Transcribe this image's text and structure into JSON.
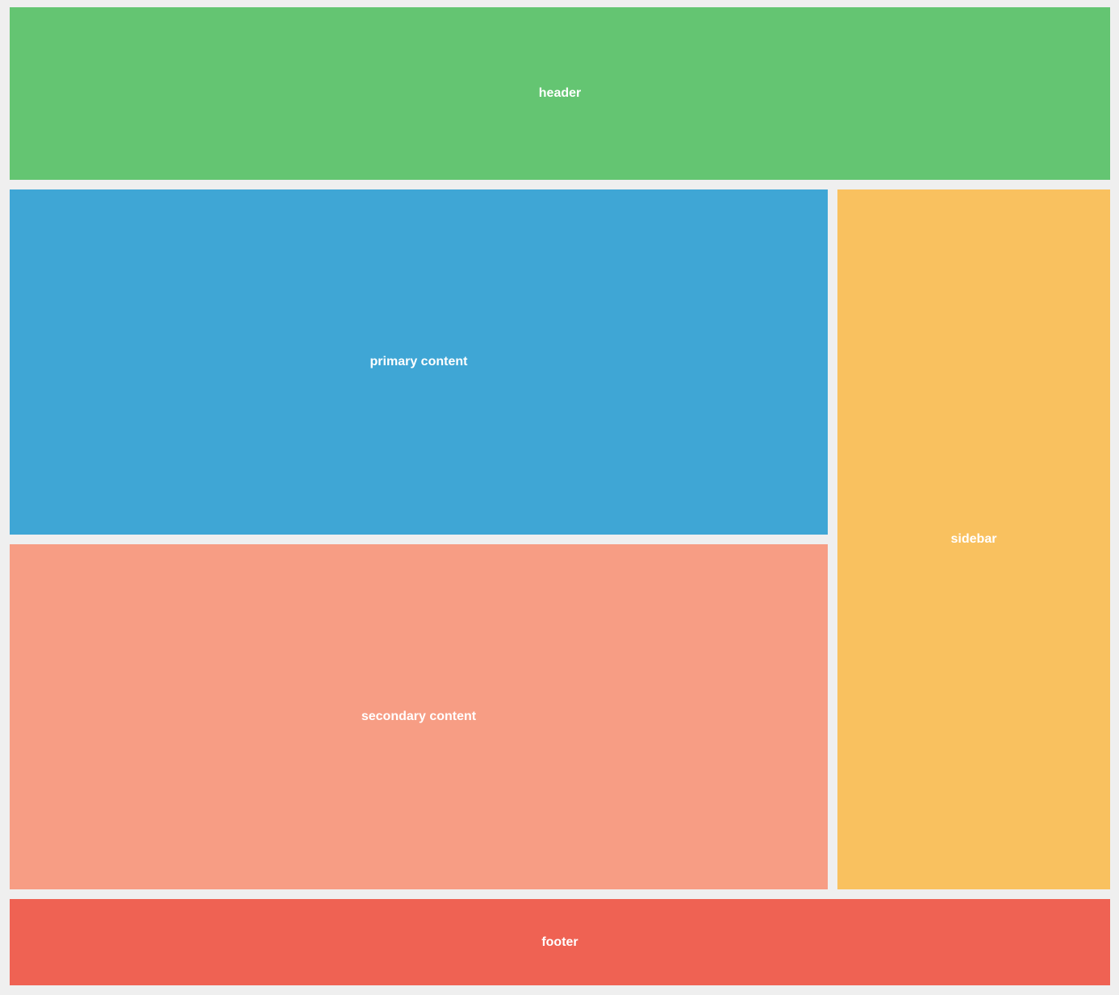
{
  "header": {
    "label": "header",
    "color": "#64c572"
  },
  "primary_content": {
    "label": "primary content",
    "color": "#3fa6d5"
  },
  "secondary_content": {
    "label": "secondary content",
    "color": "#f79d84"
  },
  "sidebar": {
    "label": "sidebar",
    "color": "#f9c15f"
  },
  "footer": {
    "label": "footer",
    "color": "#ef6253"
  }
}
